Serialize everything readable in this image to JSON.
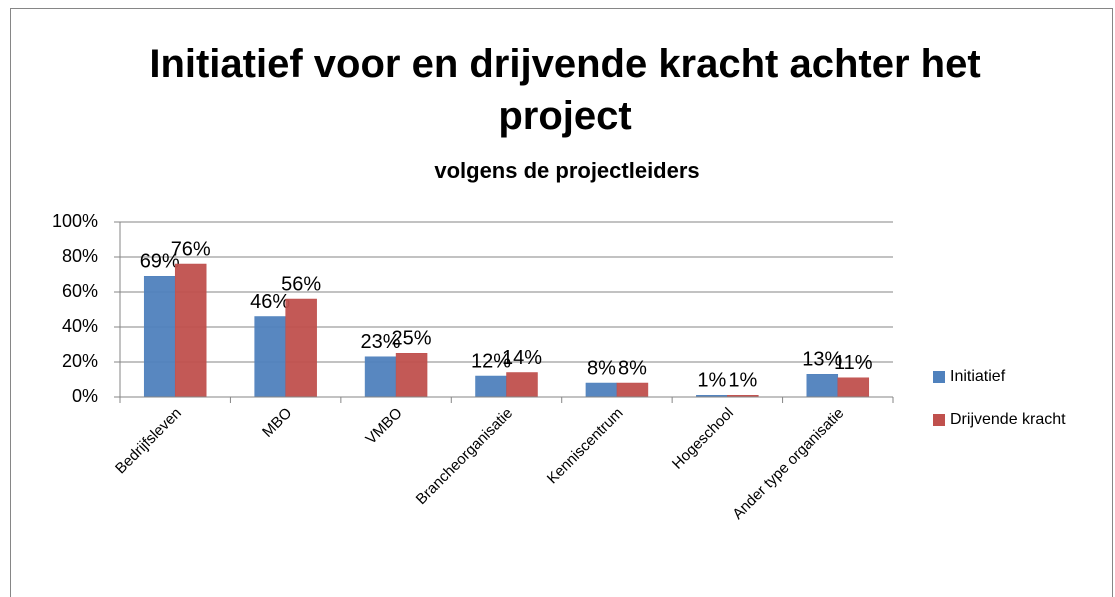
{
  "chart_data": {
    "type": "bar",
    "title": "Initiatief voor en drijvende kracht achter het project",
    "subtitle": "volgens de projectleiders",
    "categories": [
      "Bedrijfsleven",
      "MBO",
      "VMBO",
      "Brancheorganisatie",
      "Kenniscentrum",
      "Hogeschool",
      "Ander type organisatie"
    ],
    "series": [
      {
        "name": "Initiatief",
        "color": "#4f81bd",
        "values": [
          69,
          46,
          23,
          12,
          8,
          1,
          13
        ],
        "value_labels": [
          "69%",
          "46%",
          "23%",
          "12%",
          "8%",
          "1%",
          "13%"
        ]
      },
      {
        "name": "Drijvende kracht",
        "color": "#c0504d",
        "values": [
          76,
          56,
          25,
          14,
          8,
          1,
          11
        ],
        "value_labels": [
          "76%",
          "56%",
          "25%",
          "14%",
          "8%",
          "1%",
          "11%"
        ]
      }
    ],
    "ylim": [
      0,
      100
    ],
    "yticks": [
      {
        "value": 0,
        "label": "0%"
      },
      {
        "value": 20,
        "label": "20%"
      },
      {
        "value": 40,
        "label": "40%"
      },
      {
        "value": 60,
        "label": "60%"
      },
      {
        "value": 80,
        "label": "80%"
      },
      {
        "value": 100,
        "label": "100%"
      }
    ],
    "grid": true,
    "legend": "right"
  }
}
